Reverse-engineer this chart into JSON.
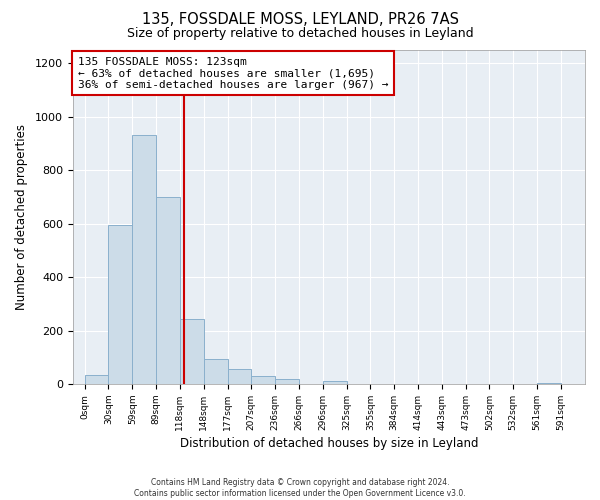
{
  "title": "135, FOSSDALE MOSS, LEYLAND, PR26 7AS",
  "subtitle": "Size of property relative to detached houses in Leyland",
  "xlabel": "Distribution of detached houses by size in Leyland",
  "ylabel": "Number of detached properties",
  "bar_color": "#ccdce8",
  "bar_edgecolor": "#8ab0cc",
  "plot_bg_color": "#e8eef4",
  "fig_bg_color": "#ffffff",
  "grid_color": "#ffffff",
  "annotation_box_edgecolor": "#cc0000",
  "vline_color": "#cc0000",
  "bin_starts": [
    0,
    29.5,
    59,
    88.5,
    118,
    147.5,
    177,
    206.5,
    236,
    265.5,
    295,
    324.5,
    354,
    383.5,
    413,
    442.5,
    472,
    501.5,
    531,
    560.5
  ],
  "bin_width": 29.5,
  "bin_labels": [
    "0sqm",
    "30sqm",
    "59sqm",
    "89sqm",
    "118sqm",
    "148sqm",
    "177sqm",
    "207sqm",
    "236sqm",
    "266sqm",
    "296sqm",
    "325sqm",
    "355sqm",
    "384sqm",
    "414sqm",
    "443sqm",
    "473sqm",
    "502sqm",
    "532sqm",
    "561sqm",
    "591sqm"
  ],
  "bar_heights": [
    35,
    595,
    930,
    700,
    245,
    95,
    55,
    30,
    20,
    0,
    10,
    0,
    0,
    0,
    0,
    0,
    0,
    0,
    0,
    5
  ],
  "vline_x": 123,
  "annotation_text_line1": "135 FOSSDALE MOSS: 123sqm",
  "annotation_text_line2": "← 63% of detached houses are smaller (1,695)",
  "annotation_text_line3": "36% of semi-detached houses are larger (967) →",
  "ylim": [
    0,
    1250
  ],
  "yticks": [
    0,
    200,
    400,
    600,
    800,
    1000,
    1200
  ],
  "xlim_left": -14.75,
  "xlim_right": 620,
  "footer_line1": "Contains HM Land Registry data © Crown copyright and database right 2024.",
  "footer_line2": "Contains public sector information licensed under the Open Government Licence v3.0."
}
